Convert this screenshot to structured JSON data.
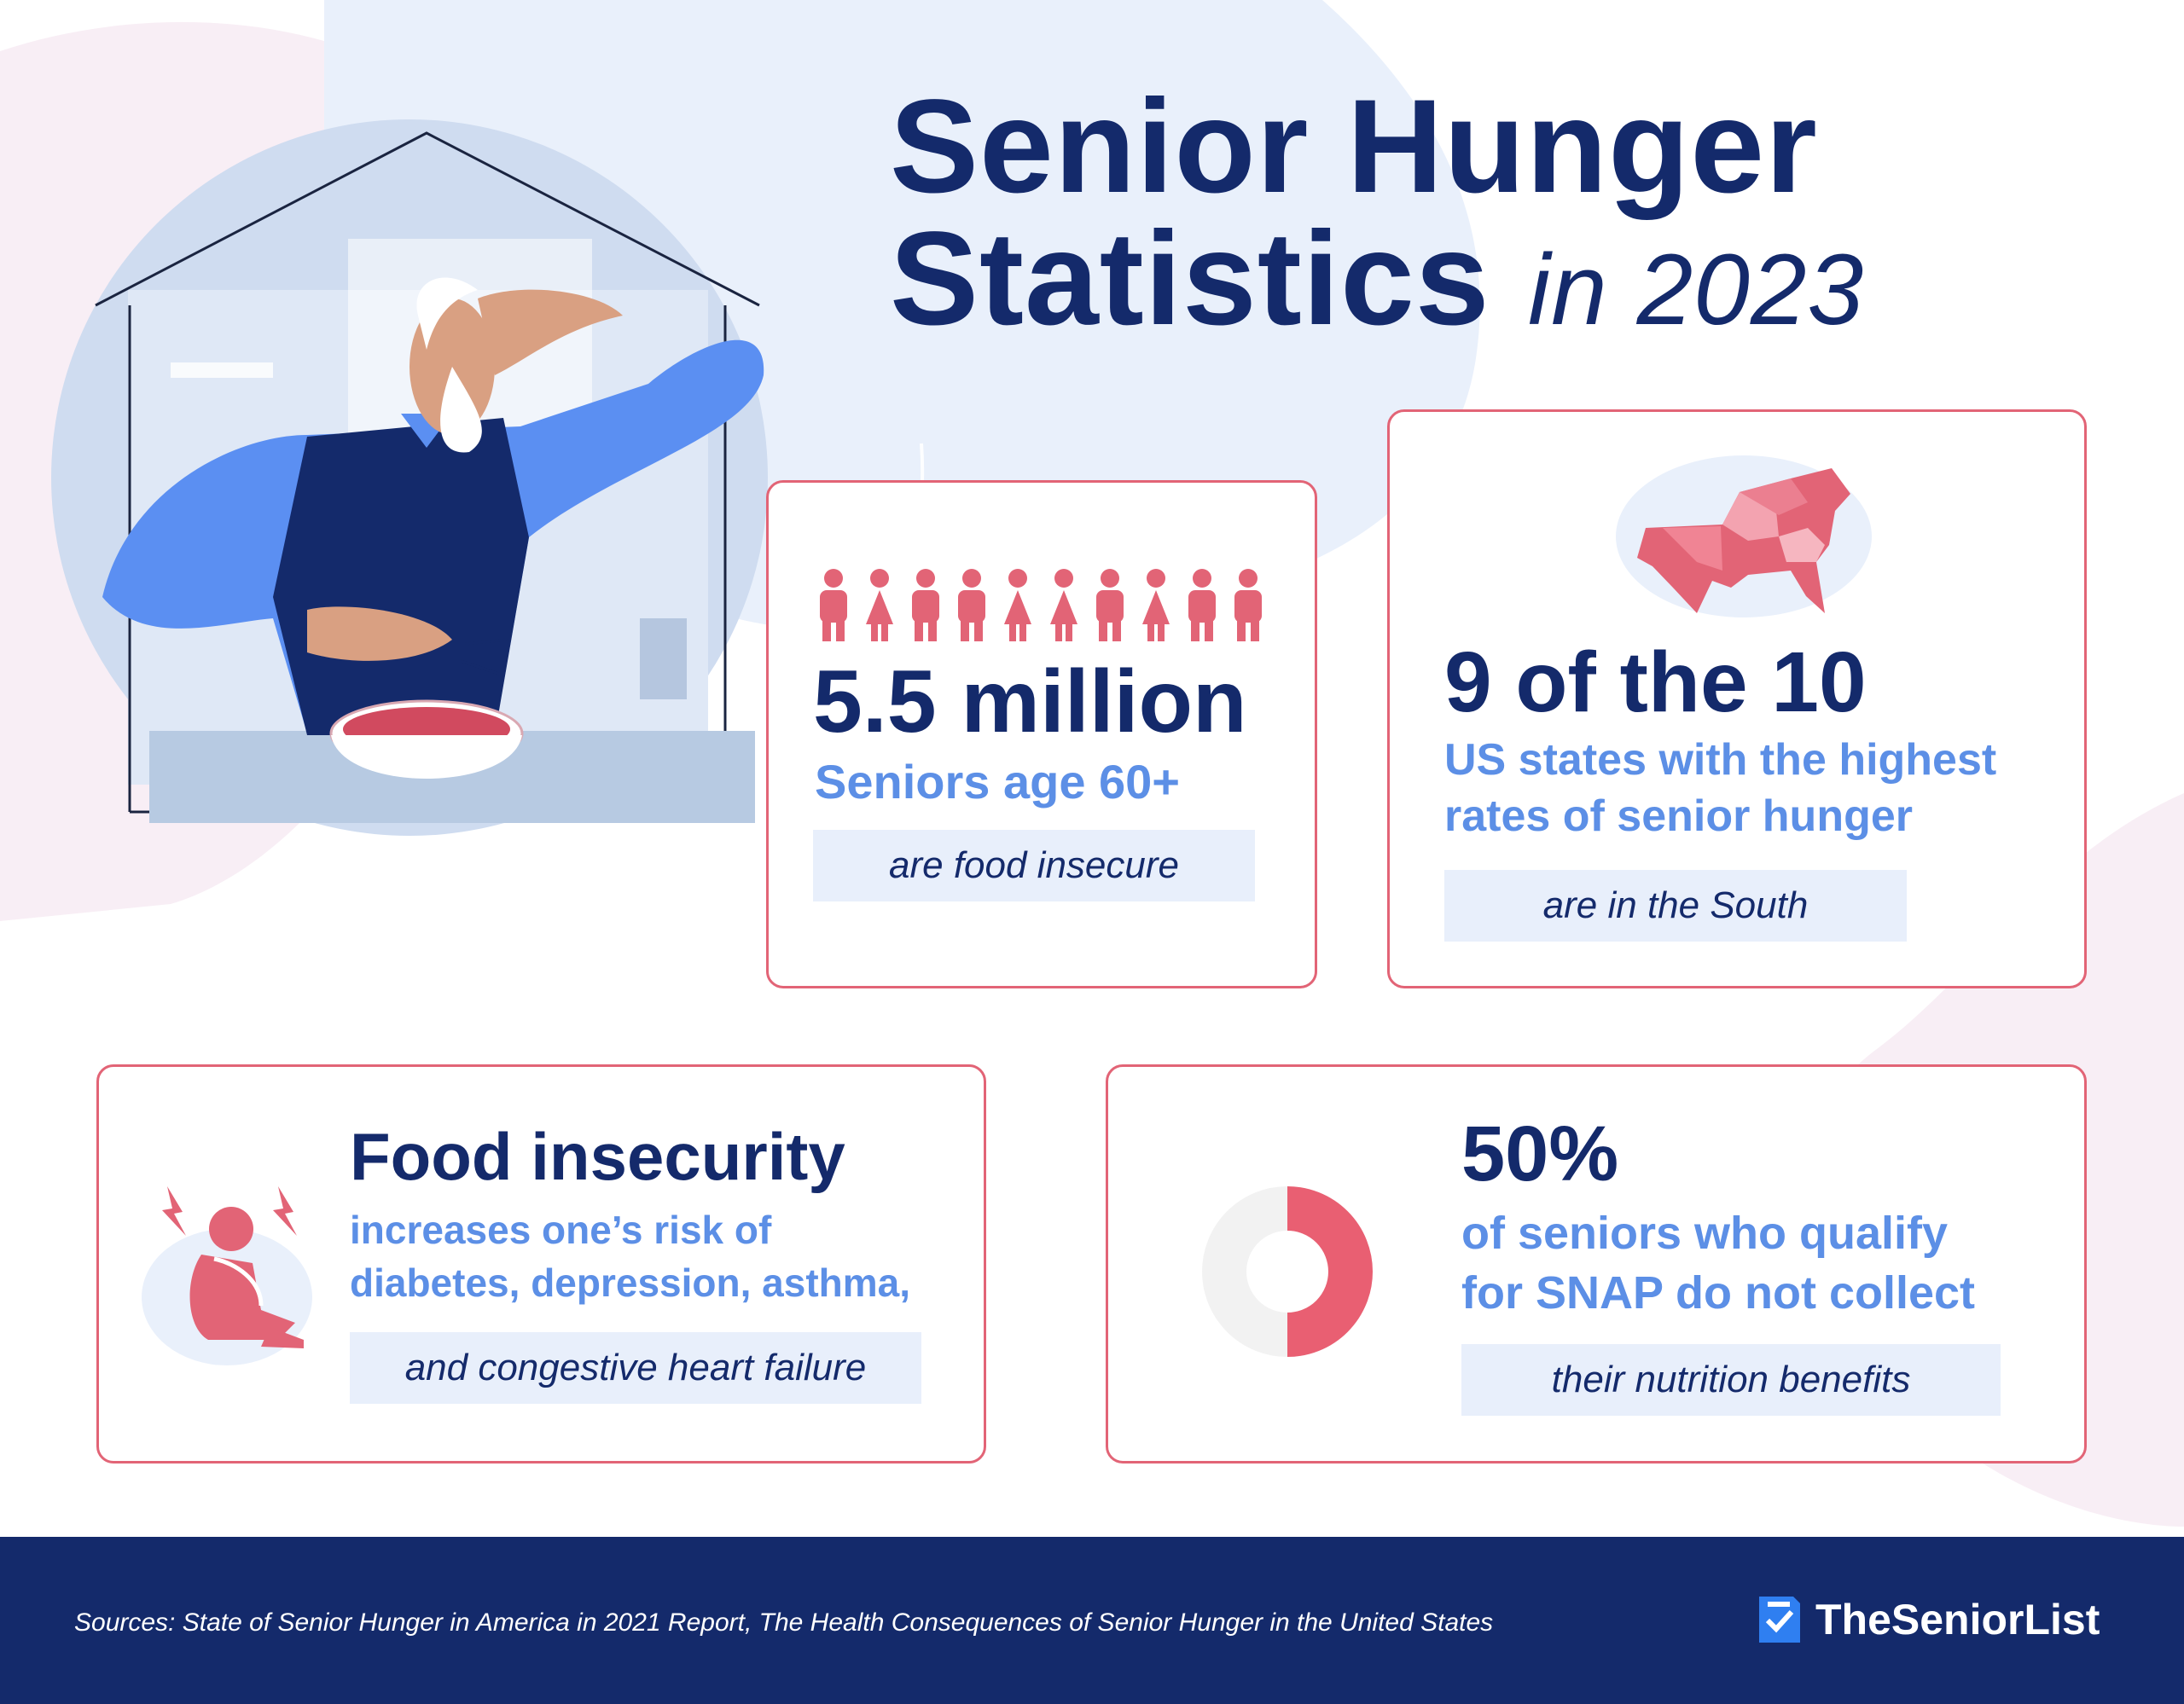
{
  "title": {
    "line1": "Senior Hunger",
    "line2": "Statistics",
    "year": "in 2023"
  },
  "stats": [
    {
      "headline": "5.5 million",
      "subline": "Seniors age 60+",
      "pill": "are food insecure",
      "icon": "people-icon"
    },
    {
      "headline": "9 of the 10",
      "subline1": "US states with the highest",
      "subline2": "rates of senior hunger",
      "pill": "are in the South",
      "icon": "us-south-map-icon"
    },
    {
      "headline": "Food insecurity",
      "subline1": "increases one’s risk of",
      "subline2": "diabetes, depression, asthma,",
      "pill": "and congestive heart failure",
      "icon": "distressed-person-icon"
    },
    {
      "headline": "50%",
      "subline1": "of seniors who qualify",
      "subline2": "for SNAP do not collect",
      "pill": "their nutrition benefits",
      "icon": "half-donut-icon",
      "percent": 50
    }
  ],
  "footer": {
    "sources": "Sources: State of Senior Hunger in America in 2021 Report, The Health Consequences of Senior Hunger in the United States",
    "brand": "TheSeniorList"
  },
  "colors": {
    "navy": "#142a6b",
    "blue": "#5c8fe6",
    "coral": "#e26476",
    "pill": "#e8effb"
  }
}
